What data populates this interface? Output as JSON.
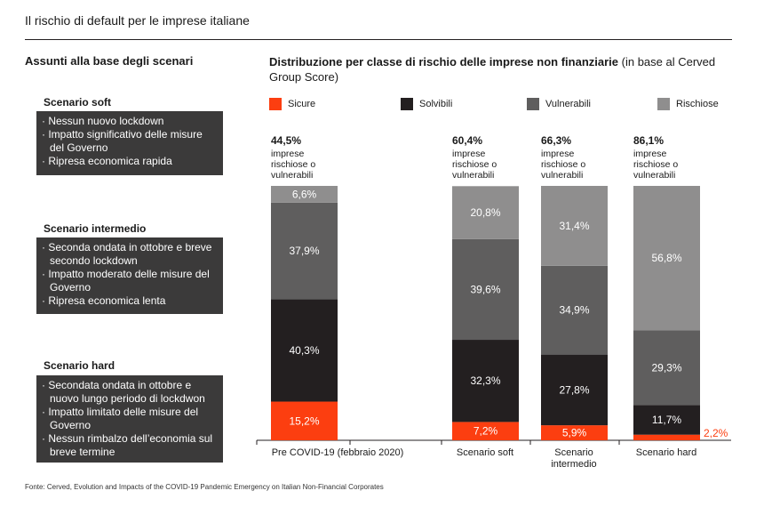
{
  "header": {
    "title": "Il rischio di default per le imprese italiane"
  },
  "left": {
    "title": "Assunti alla base degli scenari",
    "scenarios": [
      {
        "name": "Scenario soft",
        "bullets": [
          "· Nessun nuovo lockdown",
          "· Impatto significativo delle misure del Governo",
          "· Ripresa economica rapida"
        ]
      },
      {
        "name": "Scenario intermedio",
        "bullets": [
          "· Seconda ondata in ottobre e breve secondo lockdown",
          "· Impatto moderato delle misure del Governo",
          "· Ripresa economica lenta"
        ]
      },
      {
        "name": "Scenario hard",
        "bullets": [
          "· Secondata ondata in ottobre e nuovo lungo periodo di lockdwon",
          "· Impatto limitato delle misure del Governo",
          "· Nessun rimbalzo dell’economia sul breve termine"
        ]
      }
    ]
  },
  "chart_data": {
    "type": "bar",
    "stacked": true,
    "title": "Distribuzione per classe di rischio delle imprese non finanziarie",
    "subtitle": "(in base al Cerved Group Score)",
    "categories": [
      "Pre COVID-19 (febbraio 2020)",
      "Scenario soft",
      "Scenario intermedio",
      "Scenario hard"
    ],
    "series": [
      {
        "name": "Sicure",
        "color": "#fc3e10",
        "values": [
          15.2,
          7.2,
          5.9,
          2.2
        ],
        "labels": [
          "15,2%",
          "7,2%",
          "5,9%",
          "2,2%"
        ]
      },
      {
        "name": "Solvibili",
        "color": "#231f20",
        "values": [
          40.3,
          32.3,
          27.8,
          11.7
        ],
        "labels": [
          "40,3%",
          "32,3%",
          "27,8%",
          "11,7%"
        ]
      },
      {
        "name": "Vulnerabili",
        "color": "#5f5e5e",
        "values": [
          37.9,
          39.6,
          34.9,
          29.3
        ],
        "labels": [
          "37,9%",
          "39,6%",
          "34,9%",
          "29,3%"
        ]
      },
      {
        "name": "Rischiose",
        "color": "#8f8e8e",
        "values": [
          6.6,
          20.8,
          31.4,
          56.8
        ],
        "labels": [
          "6,6%",
          "20,8%",
          "31,4%",
          "56,8%"
        ]
      }
    ],
    "top_annotations": [
      {
        "value": "44,5%",
        "text": [
          "imprese",
          "rischiose o",
          "vulnerabili"
        ]
      },
      {
        "value": "60,4%",
        "text": [
          "imprese",
          "rischiose o",
          "vulnerabili"
        ]
      },
      {
        "value": "66,3%",
        "text": [
          "imprese",
          "rischiose o",
          "vulnerabili"
        ]
      },
      {
        "value": "86,1%",
        "text": [
          "imprese",
          "rischiose o",
          "vulnerabili"
        ]
      }
    ],
    "ylim": [
      0,
      100
    ],
    "legend_position": "top",
    "grid": false
  },
  "footer": {
    "source": "Fonte: Cerved, Evolution and Impacts of the COVID-19 Pandemic Emergency on Italian Non-Financial Corporates"
  }
}
